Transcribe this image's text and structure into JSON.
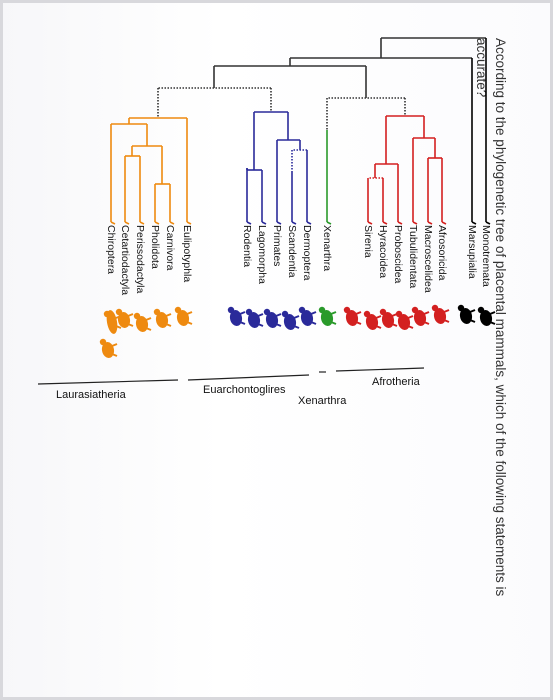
{
  "question": "According to the phylogenetic tree of placental mammals, which of the following statements is accurate?",
  "taxa": [
    {
      "name": "Monotremata",
      "color": "#000000",
      "icon": "platypus-icon"
    },
    {
      "name": "Marsupialia",
      "color": "#000000",
      "icon": "kangaroo-icon"
    },
    {
      "name": "Afrosoricida",
      "color": "#d32020",
      "icon": "tenrec-icon"
    },
    {
      "name": "Macroscelidea",
      "color": "#d32020",
      "icon": "elephant-shrew-icon"
    },
    {
      "name": "Tubulidentata",
      "color": "#d32020",
      "icon": "aardvark-icon"
    },
    {
      "name": "Proboscidea",
      "color": "#d32020",
      "icon": "elephant-icon"
    },
    {
      "name": "Hyracoidea",
      "color": "#d32020",
      "icon": "hyrax-icon"
    },
    {
      "name": "Sirenia",
      "color": "#d32020",
      "icon": "manatee-icon"
    },
    {
      "name": "Xenarthra",
      "color": "#2a9a2a",
      "icon": "armadillo-icon"
    },
    {
      "name": "Dermoptera",
      "color": "#2a2a9a",
      "icon": "colugo-icon"
    },
    {
      "name": "Scandentia",
      "color": "#2a2a9a",
      "icon": "treeshrew-icon"
    },
    {
      "name": "Primates",
      "color": "#2a2a9a",
      "icon": "monkey-icon"
    },
    {
      "name": "Lagomorpha",
      "color": "#2a2a9a",
      "icon": "rabbit-icon"
    },
    {
      "name": "Rodentia",
      "color": "#2a2a9a",
      "icon": "rodent-icon"
    },
    {
      "name": "Eulipotyphla",
      "color": "#ee8a10",
      "icon": "hedgehog-icon"
    },
    {
      "name": "Carnivora",
      "color": "#ee8a10",
      "icon": "cat-icon"
    },
    {
      "name": "Pholidota",
      "color": "#ee8a10",
      "icon": "pangolin-icon"
    },
    {
      "name": "Perissodactyla",
      "color": "#ee8a10",
      "icon": "horse-icon"
    },
    {
      "name": "Cetartiodactyla",
      "color": "#ee8a10",
      "icon": "deer-whale-icon"
    },
    {
      "name": "Chiroptera",
      "color": "#ee8a10",
      "icon": "bat-icon"
    }
  ],
  "groups": {
    "afrotheria": "Afrotheria",
    "xenarthra": "Xenarthra",
    "euarchontoglires": "Euarchontoglires",
    "laurasiatheria": "Laurasiatheria"
  }
}
